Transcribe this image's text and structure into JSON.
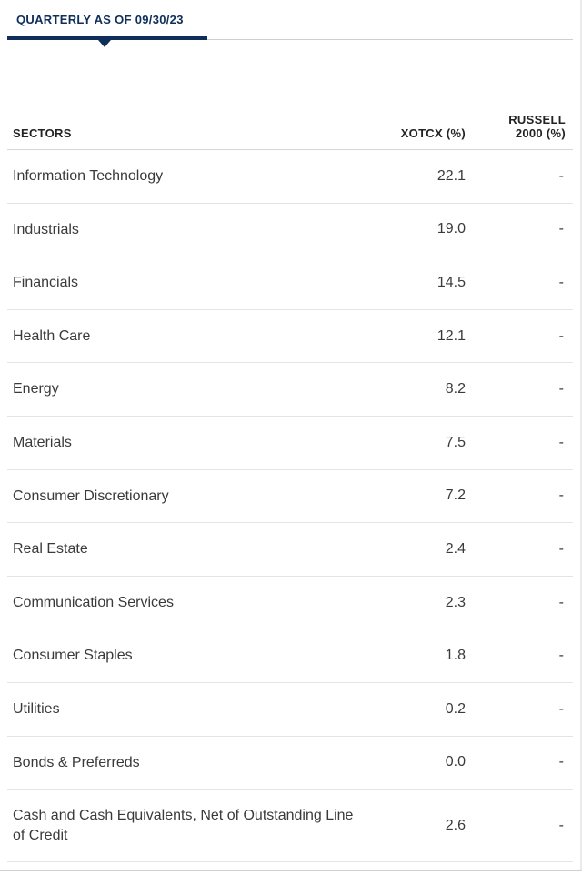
{
  "tab": {
    "label": "QUARTERLY AS OF 09/30/23"
  },
  "table": {
    "columns": {
      "sector": "SECTORS",
      "fund": "XOTCX (%)",
      "bench_line1": "RUSSELL",
      "bench_line2": "2000 (%)"
    },
    "rows": [
      {
        "name": "Information Technology",
        "fund": "22.1",
        "bench": "-"
      },
      {
        "name": "Industrials",
        "fund": "19.0",
        "bench": "-"
      },
      {
        "name": "Financials",
        "fund": "14.5",
        "bench": "-"
      },
      {
        "name": "Health Care",
        "fund": "12.1",
        "bench": "-"
      },
      {
        "name": "Energy",
        "fund": "8.2",
        "bench": "-"
      },
      {
        "name": "Materials",
        "fund": "7.5",
        "bench": "-"
      },
      {
        "name": "Consumer Discretionary",
        "fund": "7.2",
        "bench": "-"
      },
      {
        "name": "Real Estate",
        "fund": "2.4",
        "bench": "-"
      },
      {
        "name": "Communication Services",
        "fund": "2.3",
        "bench": "-"
      },
      {
        "name": "Consumer Staples",
        "fund": "1.8",
        "bench": "-"
      },
      {
        "name": "Utilities",
        "fund": "0.2",
        "bench": "-"
      },
      {
        "name": "Bonds & Preferreds",
        "fund": "0.0",
        "bench": "-"
      },
      {
        "name": "Cash and Cash Equivalents, Net of Outstanding Line of Credit",
        "fund": "2.6",
        "bench": "-"
      }
    ]
  },
  "colors": {
    "brand": "#0f2e5a",
    "border": "#d6d6d6",
    "rowBorder": "#e4e4e4",
    "text": "#3a3a3a"
  }
}
